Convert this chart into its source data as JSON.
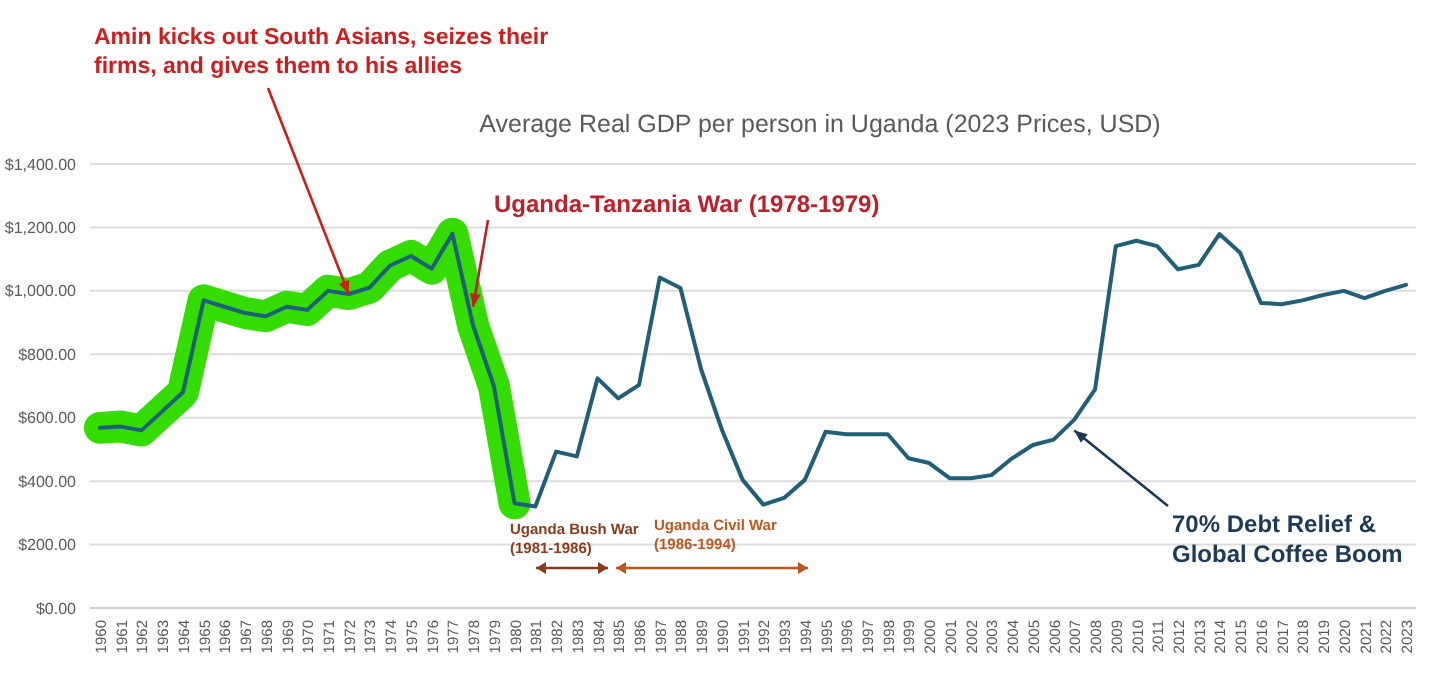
{
  "chart_data": {
    "type": "line",
    "title": "Average Real GDP per person in Uganda (2023 Prices, USD)",
    "categories": [
      "1960",
      "1961",
      "1962",
      "1963",
      "1964",
      "1965",
      "1966",
      "1967",
      "1968",
      "1969",
      "1970",
      "1971",
      "1972",
      "1973",
      "1974",
      "1975",
      "1976",
      "1977",
      "1978",
      "1979",
      "1980",
      "1981",
      "1982",
      "1983",
      "1984",
      "1985",
      "1986",
      "1987",
      "1988",
      "1989",
      "1990",
      "1991",
      "1992",
      "1993",
      "1994",
      "1995",
      "1996",
      "1997",
      "1998",
      "1999",
      "2000",
      "2001",
      "2002",
      "2003",
      "2004",
      "2005",
      "2006",
      "2007",
      "2008",
      "2009",
      "2010",
      "2011",
      "2012",
      "2013",
      "2014",
      "2015",
      "2016",
      "2017",
      "2018",
      "2019",
      "2020",
      "2021",
      "2022",
      "2023"
    ],
    "series": [
      {
        "color": "#33dd00",
        "values": [
          568,
          572,
          560,
          620,
          680,
          970,
          950,
          930,
          920,
          950,
          940,
          1000,
          990,
          1010,
          1080,
          1110,
          1070,
          1180,
          890,
          700,
          330,
          null,
          null,
          null,
          null,
          null,
          null,
          null,
          null,
          null,
          null,
          null,
          null,
          null,
          null,
          null,
          null,
          null,
          null,
          null,
          null,
          null,
          null,
          null,
          null,
          null,
          null,
          null,
          null,
          null,
          null,
          null,
          null,
          null,
          null,
          null,
          null,
          null,
          null,
          null,
          null,
          null,
          null,
          null
        ]
      },
      {
        "color": "#1f5f7a",
        "values": [
          568,
          572,
          560,
          620,
          680,
          970,
          950,
          930,
          920,
          950,
          940,
          1000,
          990,
          1010,
          1080,
          1110,
          1070,
          1180,
          890,
          700,
          330,
          320,
          493,
          478,
          724,
          661,
          703,
          1042,
          1009,
          752,
          562,
          404,
          326,
          347,
          404,
          556,
          548,
          548,
          548,
          472,
          457,
          409,
          409,
          419,
          472,
          514,
          531,
          594,
          689,
          1141,
          1158,
          1141,
          1068,
          1082,
          1179,
          1120,
          962,
          958,
          970,
          987,
          1000,
          977,
          1000,
          1019
        ]
      }
    ],
    "ylim": [
      0,
      1400
    ],
    "yticks": [
      {
        "value": 0,
        "label": "$0.00"
      },
      {
        "value": 200,
        "label": "$200.00"
      },
      {
        "value": 400,
        "label": "$400.00"
      },
      {
        "value": 600,
        "label": "$600.00"
      },
      {
        "value": 800,
        "label": "$800.00"
      },
      {
        "value": 1000,
        "label": "$1,000.00"
      },
      {
        "value": 1200,
        "label": "$1,200.00"
      },
      {
        "value": 1400,
        "label": "$1,400.00"
      }
    ],
    "grid": "y",
    "marker": "none",
    "line_style": "solid",
    "annotations": [
      {
        "text": "Amin kicks out South Asians, seizes their firms, and gives them to his allies",
        "x": "1972",
        "y": 990
      },
      {
        "text": "Uganda-Tanzania War (1978-1979)",
        "x": "1978",
        "y": 950
      },
      "Uganda Bush War (1981-1986)",
      "Uganda Civil War (1986-1994)",
      {
        "text": "70% Debt Relief & Global Coffee Boom",
        "x": "2007",
        "y": 560
      }
    ]
  }
}
